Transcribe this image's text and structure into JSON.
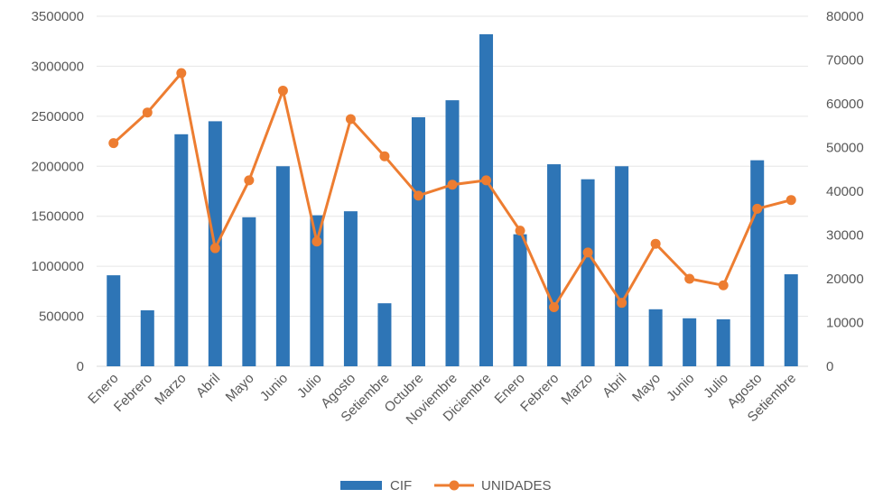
{
  "chart_data": {
    "type": "bar",
    "title": "",
    "xlabel": "",
    "ylabel": "",
    "categories": [
      "Enero",
      "Febrero",
      "Marzo",
      "Abril",
      "Mayo",
      "Junio",
      "Julio",
      "Agosto",
      "Setiembre",
      "Octubre",
      "Noviembre",
      "Diciembre",
      "Enero",
      "Febrero",
      "Marzo",
      "Abril",
      "Mayo",
      "Junio",
      "Julio",
      "Agosto",
      "Setiembre"
    ],
    "series": [
      {
        "name": "CIF",
        "type": "bar",
        "axis": "left",
        "color": "#2e75b6",
        "values": [
          910000,
          560000,
          2320000,
          2450000,
          1490000,
          2000000,
          1510000,
          1550000,
          630000,
          2490000,
          2660000,
          3320000,
          1320000,
          2020000,
          1870000,
          2000000,
          570000,
          480000,
          470000,
          2060000,
          920000
        ]
      },
      {
        "name": "UNIDADES",
        "type": "line",
        "axis": "right",
        "color": "#ed7d31",
        "values": [
          51000,
          58000,
          67000,
          27000,
          42500,
          63000,
          28500,
          56500,
          48000,
          39000,
          41500,
          42500,
          31000,
          13500,
          26000,
          14500,
          28000,
          20000,
          18500,
          36000,
          38000
        ]
      }
    ],
    "ylim_left": [
      0,
      3500000
    ],
    "yticks_left": [
      "0",
      "500000",
      "1000000",
      "1500000",
      "2000000",
      "2500000",
      "3000000",
      "3500000"
    ],
    "ylim_right": [
      0,
      80000
    ],
    "yticks_right": [
      "0",
      "10000",
      "20000",
      "30000",
      "40000",
      "50000",
      "60000",
      "70000",
      "80000"
    ],
    "grid": true,
    "legend_position": "bottom"
  },
  "legend": {
    "cif_label": "CIF",
    "unidades_label": "UNIDADES"
  }
}
